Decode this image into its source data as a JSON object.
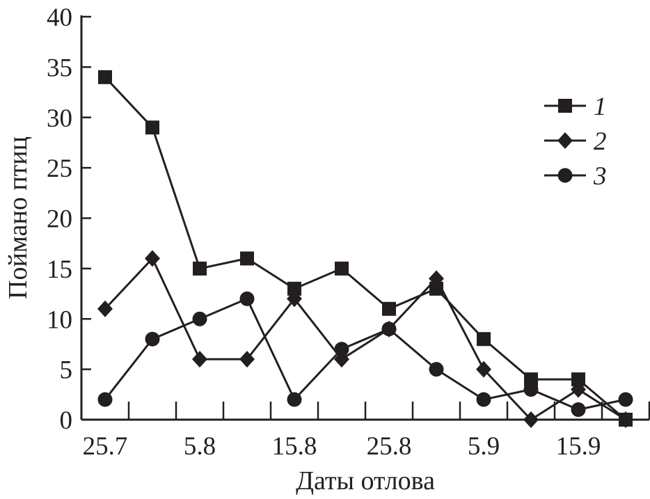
{
  "chart_data": {
    "type": "line",
    "title": "",
    "xlabel": "Даты отлова",
    "ylabel": "Поймано птиц",
    "ylim": [
      0,
      40
    ],
    "yticks": [
      0,
      5,
      10,
      15,
      20,
      25,
      30,
      35,
      40
    ],
    "x_tick_labels": [
      "25.7",
      "",
      "5.8",
      "",
      "15.8",
      "",
      "25.8",
      "",
      "5.9",
      "",
      "15.9",
      ""
    ],
    "grid": false,
    "legend_position": "top-right",
    "color": "#231f20",
    "series": [
      {
        "name": "1",
        "marker": "square",
        "values": [
          34,
          29,
          15,
          16,
          13,
          15,
          11,
          13,
          8,
          4,
          4,
          0
        ]
      },
      {
        "name": "2",
        "marker": "diamond",
        "values": [
          11,
          16,
          6,
          6,
          12,
          6,
          9,
          14,
          5,
          0,
          3,
          0
        ]
      },
      {
        "name": "3",
        "marker": "circle",
        "values": [
          2,
          8,
          10,
          12,
          2,
          7,
          9,
          5,
          2,
          3,
          1,
          2
        ]
      }
    ]
  }
}
